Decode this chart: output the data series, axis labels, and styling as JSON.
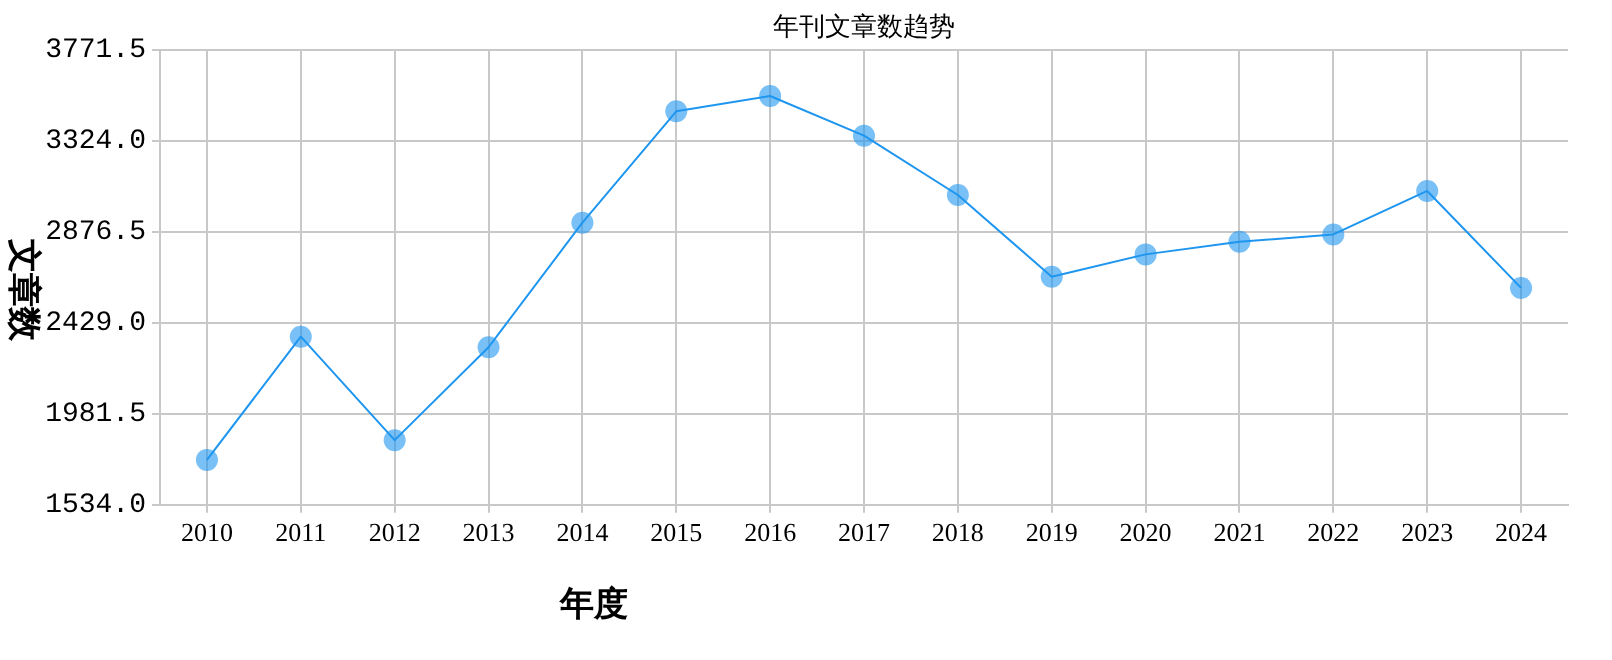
{
  "chart_data": {
    "type": "line",
    "title": "年刊文章数趋势",
    "xlabel": "年度",
    "ylabel": "文章数",
    "categories": [
      "2010",
      "2011",
      "2012",
      "2013",
      "2014",
      "2015",
      "2016",
      "2017",
      "2018",
      "2019",
      "2020",
      "2021",
      "2022",
      "2023",
      "2024"
    ],
    "series": [
      {
        "color": "#1e96f0",
        "values": [
          1755,
          2361,
          1852,
          2309,
          2922,
          3470,
          3545,
          3350,
          3058,
          2656,
          2766,
          2828,
          2864,
          3078,
          2601
        ]
      }
    ],
    "ylim": [
      1534,
      3771.5
    ],
    "yticks": [
      {
        "value": 1534,
        "label": "1534.0"
      },
      {
        "value": 1981.5,
        "label": "1981.5"
      },
      {
        "value": 2429,
        "label": "2429.0"
      },
      {
        "value": 2876.5,
        "label": "2876.5"
      },
      {
        "value": 3324,
        "label": "3324.0"
      },
      {
        "value": 3771.5,
        "label": "3771.5"
      }
    ],
    "grid": true,
    "legend": false,
    "marker": "circle",
    "line_style": "solid"
  }
}
